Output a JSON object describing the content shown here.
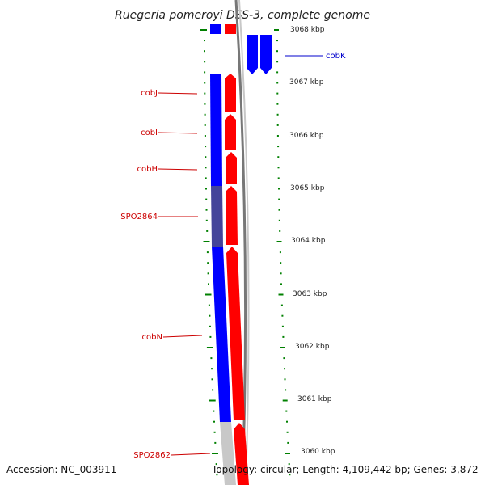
{
  "title": "Ruegeria pomeroyi DSS-3, complete genome",
  "footer": {
    "accession": "Accession: NC_003911",
    "topology": "Topology: circular; Length: 4,109,442 bp; Genes: 3,872"
  },
  "scale": {
    "unit": "kbp",
    "ticks": [
      {
        "value": 3068,
        "label": "3068 kbp"
      },
      {
        "value": 3067,
        "label": "3067 kbp"
      },
      {
        "value": 3066,
        "label": "3066 kbp"
      },
      {
        "value": 3065,
        "label": "3065 kbp"
      },
      {
        "value": 3064,
        "label": "3064 kbp"
      },
      {
        "value": 3063,
        "label": "3063 kbp"
      },
      {
        "value": 3062,
        "label": "3062 kbp"
      },
      {
        "value": 3061,
        "label": "3061 kbp"
      },
      {
        "value": 3060,
        "label": "3060 kbp"
      }
    ]
  },
  "gene_labels": [
    {
      "name": "cobK",
      "color": "#0000cc"
    },
    {
      "name": "cobJ",
      "color": "#cc0000"
    },
    {
      "name": "cobI",
      "color": "#cc0000"
    },
    {
      "name": "cobH",
      "color": "#cc0000"
    },
    {
      "name": "SPO2864",
      "color": "#cc0000"
    },
    {
      "name": "cobN",
      "color": "#cc0000"
    },
    {
      "name": "SPO2862",
      "color": "#cc0000"
    }
  ],
  "colors": {
    "forward_feature": "#0000ff",
    "reverse_feature": "#ff0000",
    "tick": "#008000",
    "backbone": "#808080"
  }
}
